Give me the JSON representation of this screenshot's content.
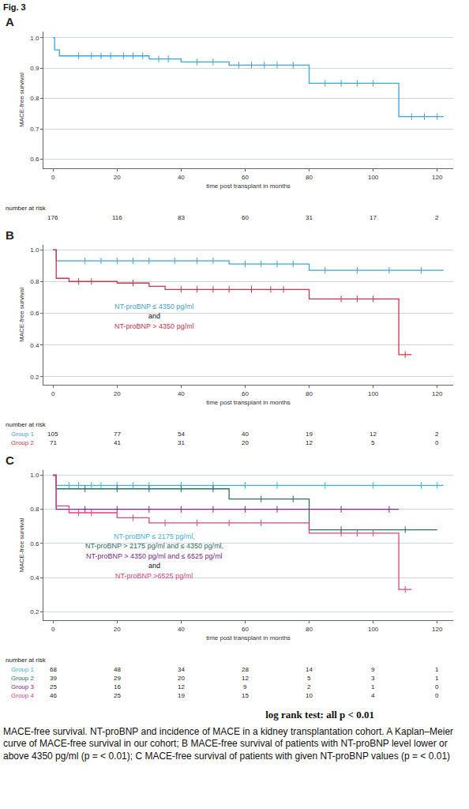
{
  "figure_label": "Fig. 3",
  "chart_data": [
    {
      "type": "line",
      "panel": "A",
      "line_style": "step",
      "marker": "cross",
      "grid": true,
      "x_label": "time post transplant in months",
      "y_label": "MACE-free survival",
      "xlim": [
        -3,
        125
      ],
      "xticks": [
        0,
        20,
        40,
        60,
        80,
        100,
        120
      ],
      "ylim": [
        0.57,
        1.02
      ],
      "yticks": [
        0.6,
        0.7,
        0.8,
        0.9,
        {
          "value": 1,
          "label": "1.0"
        }
      ],
      "at_risk_title": "number at risk",
      "at_risk_times": [
        0,
        20,
        40,
        60,
        80,
        100,
        120
      ],
      "series": [
        {
          "color": "#3aa6dd",
          "x": [
            0,
            0.5,
            2,
            30,
            40,
            55,
            80,
            108,
            122
          ],
          "values": [
            1.0,
            0.96,
            0.94,
            0.93,
            0.92,
            0.91,
            0.85,
            0.74,
            0.74
          ],
          "censored_x": [
            8,
            12,
            15,
            18,
            22,
            25,
            28,
            33,
            36,
            45,
            50,
            58,
            62,
            66,
            70,
            75,
            85,
            90,
            95,
            100,
            112,
            116,
            120
          ],
          "censored_values": [
            0.94,
            0.94,
            0.94,
            0.94,
            0.94,
            0.94,
            0.94,
            0.93,
            0.93,
            0.92,
            0.92,
            0.91,
            0.91,
            0.91,
            0.91,
            0.91,
            0.85,
            0.85,
            0.85,
            0.85,
            0.74,
            0.74,
            0.74
          ],
          "at_risk": [
            176,
            116,
            83,
            60,
            31,
            17,
            2
          ]
        }
      ],
      "annotations": []
    },
    {
      "type": "line",
      "panel": "B",
      "line_style": "step",
      "marker": "cross",
      "grid": true,
      "x_label": "time post transplant in months",
      "y_label": "MACE-free survival",
      "xlim": [
        -3,
        125
      ],
      "xticks": [
        0,
        20,
        40,
        60,
        80,
        100,
        120
      ],
      "ylim": [
        0.15,
        1.03
      ],
      "yticks": [
        0.2,
        0.4,
        0.6,
        0.8,
        {
          "value": 1,
          "label": "1.0"
        }
      ],
      "at_risk_title": "number at risk",
      "at_risk_times": [
        0,
        20,
        40,
        60,
        80,
        100,
        120
      ],
      "series": [
        {
          "name": "Group 1",
          "color": "#3aa6dd",
          "x": [
            0,
            1,
            55,
            80,
            122
          ],
          "values": [
            1.0,
            0.93,
            0.91,
            0.87,
            0.87
          ],
          "censored_x": [
            10,
            15,
            20,
            25,
            30,
            38,
            45,
            50,
            60,
            65,
            70,
            75,
            85,
            95,
            105,
            115
          ],
          "censored_values": [
            0.93,
            0.93,
            0.93,
            0.93,
            0.93,
            0.93,
            0.93,
            0.93,
            0.91,
            0.91,
            0.91,
            0.91,
            0.87,
            0.87,
            0.87,
            0.87
          ],
          "at_risk": [
            105,
            77,
            54,
            40,
            19,
            12,
            2
          ]
        },
        {
          "name": "Group 2",
          "color": "#d6324a",
          "x": [
            0,
            1,
            5,
            20,
            30,
            35,
            80,
            108,
            112
          ],
          "values": [
            1.0,
            0.82,
            0.8,
            0.79,
            0.77,
            0.75,
            0.69,
            0.34,
            0.34
          ],
          "censored_x": [
            8,
            12,
            25,
            40,
            45,
            50,
            55,
            62,
            68,
            72,
            90,
            95,
            100,
            110
          ],
          "censored_values": [
            0.8,
            0.8,
            0.79,
            0.75,
            0.75,
            0.75,
            0.75,
            0.75,
            0.75,
            0.75,
            0.69,
            0.69,
            0.69,
            0.34
          ],
          "at_risk": [
            71,
            41,
            31,
            20,
            12,
            5,
            0
          ]
        }
      ],
      "annotations": [
        {
          "text": "NT-proBNP ≤ 4350 pg/ml",
          "color": "#3aa6dd"
        },
        {
          "text": "and",
          "color": "#111111"
        },
        {
          "text": "NT-proBNP > 4350 pg/ml",
          "color": "#d6324a"
        }
      ]
    },
    {
      "type": "line",
      "panel": "C",
      "line_style": "step",
      "marker": "cross",
      "grid": true,
      "x_label": "time post transplant in months",
      "y_label": "MACE-free survival",
      "xlim": [
        -3,
        125
      ],
      "xticks": [
        0,
        20,
        40,
        60,
        80,
        100,
        120
      ],
      "ylim": [
        0.15,
        1.03
      ],
      "yticks": [
        0.2,
        0.4,
        0.6,
        0.8,
        {
          "value": 1,
          "label": "1.0"
        }
      ],
      "at_risk_title": "number at risk",
      "at_risk_times": [
        0,
        20,
        40,
        60,
        80,
        100,
        120
      ],
      "series": [
        {
          "name": "Group 1",
          "color": "#3fb1e0",
          "x": [
            0,
            1,
            122
          ],
          "values": [
            1.0,
            0.94,
            0.94
          ],
          "censored_x": [
            5,
            8,
            12,
            15,
            20,
            25,
            30,
            40,
            50,
            60,
            70,
            85,
            100,
            115,
            120
          ],
          "censored_values": [
            0.94,
            0.94,
            0.94,
            0.94,
            0.94,
            0.94,
            0.94,
            0.94,
            0.94,
            0.94,
            0.94,
            0.94,
            0.94,
            0.94,
            0.94
          ],
          "at_risk": [
            68,
            48,
            34,
            28,
            14,
            9,
            1
          ]
        },
        {
          "name": "Group 2",
          "color": "#2f6f66",
          "x": [
            0,
            1,
            55,
            80,
            120
          ],
          "values": [
            1.0,
            0.92,
            0.86,
            0.68,
            0.68
          ],
          "censored_x": [
            10,
            20,
            30,
            40,
            50,
            65,
            75,
            90,
            110
          ],
          "censored_values": [
            0.92,
            0.92,
            0.92,
            0.92,
            0.92,
            0.86,
            0.86,
            0.68,
            0.68
          ],
          "at_risk": [
            39,
            29,
            20,
            12,
            5,
            3,
            1
          ]
        },
        {
          "name": "Group 3",
          "color": "#7b2a8c",
          "x": [
            0,
            1,
            108
          ],
          "values": [
            1.0,
            0.8,
            0.8
          ],
          "censored_x": [
            10,
            20,
            30,
            40,
            50,
            60,
            70,
            90,
            105
          ],
          "censored_values": [
            0.8,
            0.8,
            0.8,
            0.8,
            0.8,
            0.8,
            0.8,
            0.8,
            0.8
          ],
          "at_risk": [
            25,
            16,
            12,
            9,
            2,
            1,
            0
          ]
        },
        {
          "name": "Group 4",
          "color": "#e0457b",
          "x": [
            0,
            1,
            5,
            20,
            30,
            80,
            108,
            112
          ],
          "values": [
            1.0,
            0.82,
            0.78,
            0.75,
            0.72,
            0.66,
            0.33,
            0.33
          ],
          "censored_x": [
            8,
            12,
            25,
            35,
            45,
            55,
            65,
            90,
            95,
            100,
            110
          ],
          "censored_values": [
            0.78,
            0.78,
            0.75,
            0.72,
            0.72,
            0.72,
            0.72,
            0.66,
            0.66,
            0.66,
            0.33
          ],
          "at_risk": [
            46,
            25,
            19,
            15,
            10,
            4,
            0
          ]
        }
      ],
      "annotations": [
        {
          "text": "NT-proBNP ≤ 2175 pg/ml,",
          "color": "#3fb1e0"
        },
        {
          "text": "NT-proBNP > 2175 pg/ml and ≤ 4350 pg/ml,",
          "color": "#2f6f66"
        },
        {
          "text": "NT-proBNP > 4350 pg/ml and ≤ 6525 pg/ml",
          "color": "#7b2a8c"
        },
        {
          "text": "and",
          "color": "#111111"
        },
        {
          "text": "NT-proBNP >6525 pg/ml",
          "color": "#e0457b"
        }
      ]
    }
  ],
  "footer": "log rank test:  all p < 0.01",
  "caption": "MACE-free survival. NT-proBNP and incidence of MACE in a kidney transplantation cohort. A Kaplan–Meier curve of MACE-free survival in our cohort; B MACE-free survival of patients with NT-proBNP level lower or above 4350 pg/ml (p = < 0.01); C MACE-free survival of patients with given NT-proBNP values (p = < 0.01)"
}
